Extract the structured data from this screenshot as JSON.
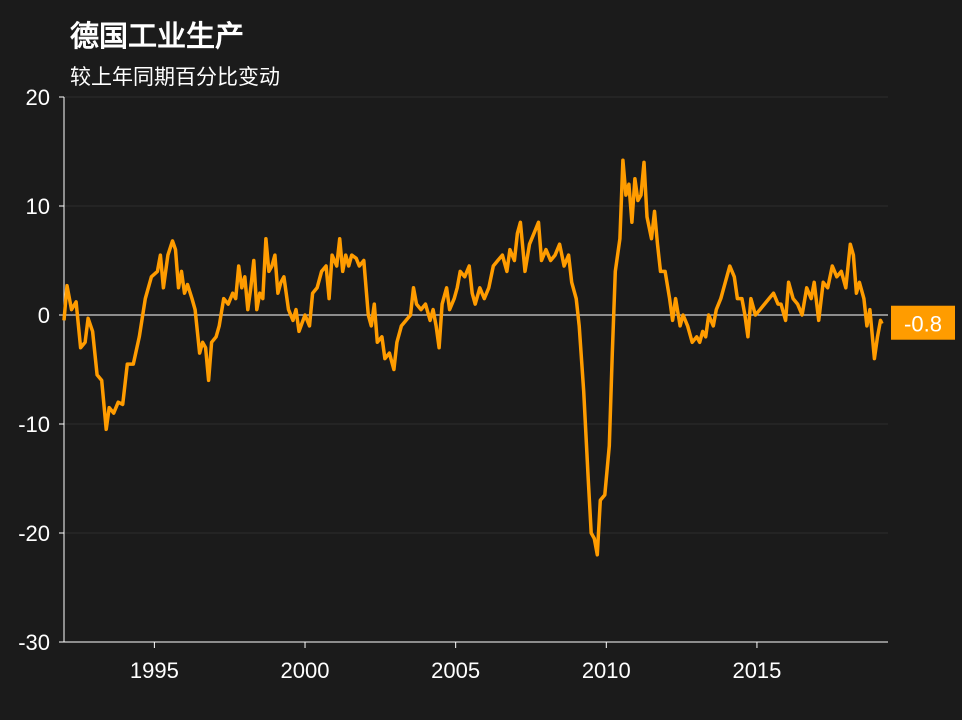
{
  "chart_data": {
    "type": "line",
    "title": "德国工业生产",
    "subtitle": "较上年同期百分比变动",
    "x": [
      1992.0,
      1992.1,
      1992.25,
      1992.4,
      1992.55,
      1992.7,
      1992.8,
      1992.95,
      1993.1,
      1993.25,
      1993.4,
      1993.5,
      1993.65,
      1993.8,
      1993.95,
      1994.1,
      1994.3,
      1994.5,
      1994.7,
      1994.9,
      1995.1,
      1995.2,
      1995.3,
      1995.45,
      1995.6,
      1995.7,
      1995.8,
      1995.9,
      1996.0,
      1996.1,
      1996.25,
      1996.35,
      1996.5,
      1996.6,
      1996.7,
      1996.8,
      1996.9,
      1997.05,
      1997.15,
      1997.3,
      1997.45,
      1997.6,
      1997.7,
      1997.8,
      1997.9,
      1998.0,
      1998.1,
      1998.2,
      1998.3,
      1998.4,
      1998.5,
      1998.6,
      1998.7,
      1998.8,
      1998.9,
      1999.0,
      1999.1,
      1999.2,
      1999.3,
      1999.45,
      1999.6,
      1999.7,
      1999.8,
      2000.0,
      2000.15,
      2000.25,
      2000.4,
      2000.55,
      2000.7,
      2000.8,
      2000.9,
      2001.05,
      2001.15,
      2001.25,
      2001.35,
      2001.45,
      2001.55,
      2001.7,
      2001.8,
      2001.95,
      2002.1,
      2002.2,
      2002.3,
      2002.4,
      2002.55,
      2002.65,
      2002.8,
      2002.95,
      2003.05,
      2003.2,
      2003.35,
      2003.5,
      2003.6,
      2003.7,
      2003.85,
      2004.0,
      2004.15,
      2004.25,
      2004.35,
      2004.45,
      2004.55,
      2004.7,
      2004.8,
      2004.95,
      2005.05,
      2005.15,
      2005.3,
      2005.45,
      2005.55,
      2005.65,
      2005.8,
      2005.95,
      2006.1,
      2006.25,
      2006.4,
      2006.55,
      2006.7,
      2006.8,
      2006.95,
      2007.05,
      2007.15,
      2007.3,
      2007.45,
      2007.6,
      2007.75,
      2007.85,
      2008.0,
      2008.15,
      2008.3,
      2008.45,
      2008.6,
      2008.75,
      2008.85,
      2009.0,
      2009.1,
      2009.25,
      2009.4,
      2009.5,
      2009.6,
      2009.7,
      2009.8,
      2009.95,
      2010.1,
      2010.2,
      2010.3,
      2010.45,
      2010.55,
      2010.65,
      2010.75,
      2010.85,
      2010.95,
      2011.05,
      2011.15,
      2011.25,
      2011.35,
      2011.5,
      2011.6,
      2011.7,
      2011.8,
      2011.95,
      2012.1,
      2012.2,
      2012.3,
      2012.45,
      2012.55,
      2012.7,
      2012.85,
      2013.0,
      2013.1,
      2013.2,
      2013.3,
      2013.4,
      2013.55,
      2013.65,
      2013.8,
      2013.95,
      2014.1,
      2014.25,
      2014.35,
      2014.5,
      2014.6,
      2014.7,
      2014.8,
      2014.95,
      2015.1,
      2015.25,
      2015.4,
      2015.55,
      2015.7,
      2015.8,
      2015.95,
      2016.05,
      2016.2,
      2016.35,
      2016.5,
      2016.65,
      2016.8,
      2016.9,
      2017.05,
      2017.2,
      2017.35,
      2017.5,
      2017.65,
      2017.8,
      2017.95,
      2018.1,
      2018.2,
      2018.3,
      2018.4,
      2018.55,
      2018.65,
      2018.75,
      2018.9,
      2019.0,
      2019.1,
      2019.15
    ],
    "series": [
      {
        "color": "#ff9c00",
        "values": [
          -0.5,
          2.7,
          0.5,
          1.2,
          -3,
          -2.5,
          -0.3,
          -1.5,
          -5.5,
          -6,
          -10.5,
          -8.5,
          -9,
          -8,
          -8.2,
          -4.5,
          -4.5,
          -2,
          1.5,
          3.5,
          4,
          5.5,
          2.5,
          5.5,
          6.8,
          6,
          2.5,
          4,
          2,
          2.8,
          1.5,
          0.5,
          -3.5,
          -2.5,
          -3,
          -6,
          -2.5,
          -2,
          -1,
          1.5,
          1,
          2,
          1.5,
          4.5,
          2.5,
          3.5,
          0.5,
          2.5,
          5,
          0.5,
          2,
          1.5,
          7,
          4,
          4.5,
          5.5,
          2,
          3,
          3.5,
          0.5,
          -0.5,
          0.5,
          -1.5,
          0,
          -1,
          2,
          2.5,
          4,
          4.5,
          1.5,
          5.5,
          4.5,
          7,
          4,
          5.5,
          4.5,
          5.5,
          5.2,
          4.5,
          5,
          0,
          -1,
          1,
          -2.5,
          -2,
          -4,
          -3.5,
          -5,
          -2.5,
          -1,
          -0.5,
          0,
          2.5,
          1,
          0.5,
          1,
          -0.5,
          0.5,
          -1,
          -3,
          1,
          2.5,
          0.5,
          1.5,
          2.5,
          4,
          3.5,
          4.5,
          2,
          1,
          2.5,
          1.5,
          2.5,
          4.5,
          5,
          5.5,
          4,
          6,
          5,
          7.5,
          8.5,
          4,
          6.5,
          7.5,
          8.5,
          5,
          6,
          5,
          5.5,
          6.5,
          4.5,
          5.5,
          3,
          1.5,
          -1,
          -7,
          -15,
          -20,
          -20.5,
          -22,
          -17,
          -16.5,
          -12,
          -3.5,
          4,
          7,
          14.2,
          11,
          12,
          8.5,
          12.5,
          10.5,
          11,
          14,
          9,
          7,
          9.5,
          6.5,
          4,
          4,
          1.5,
          -0.5,
          1.5,
          -1,
          0,
          -1,
          -2.5,
          -2,
          -2.5,
          -1.5,
          -2,
          0,
          -1,
          0.5,
          1.5,
          3,
          4.5,
          3.5,
          1.5,
          1.5,
          0,
          -2,
          1.5,
          0,
          0.5,
          1,
          1.5,
          2,
          1,
          1,
          -0.5,
          3,
          1.5,
          1,
          0,
          2.5,
          1.5,
          3,
          -0.5,
          3,
          2.5,
          4.5,
          3.5,
          4,
          2.5,
          6.5,
          5.5,
          2,
          3,
          1.5,
          -1,
          0.5,
          -4,
          -2,
          -0.5,
          -0.8
        ]
      }
    ],
    "xlim": [
      1992,
      2019.35
    ],
    "xticks": [
      1995,
      2000,
      2005,
      2010,
      2015
    ],
    "ylim": [
      -30,
      20
    ],
    "yticks": [
      -30,
      -20,
      -10,
      0,
      10,
      20
    ],
    "grid": true
  }
}
